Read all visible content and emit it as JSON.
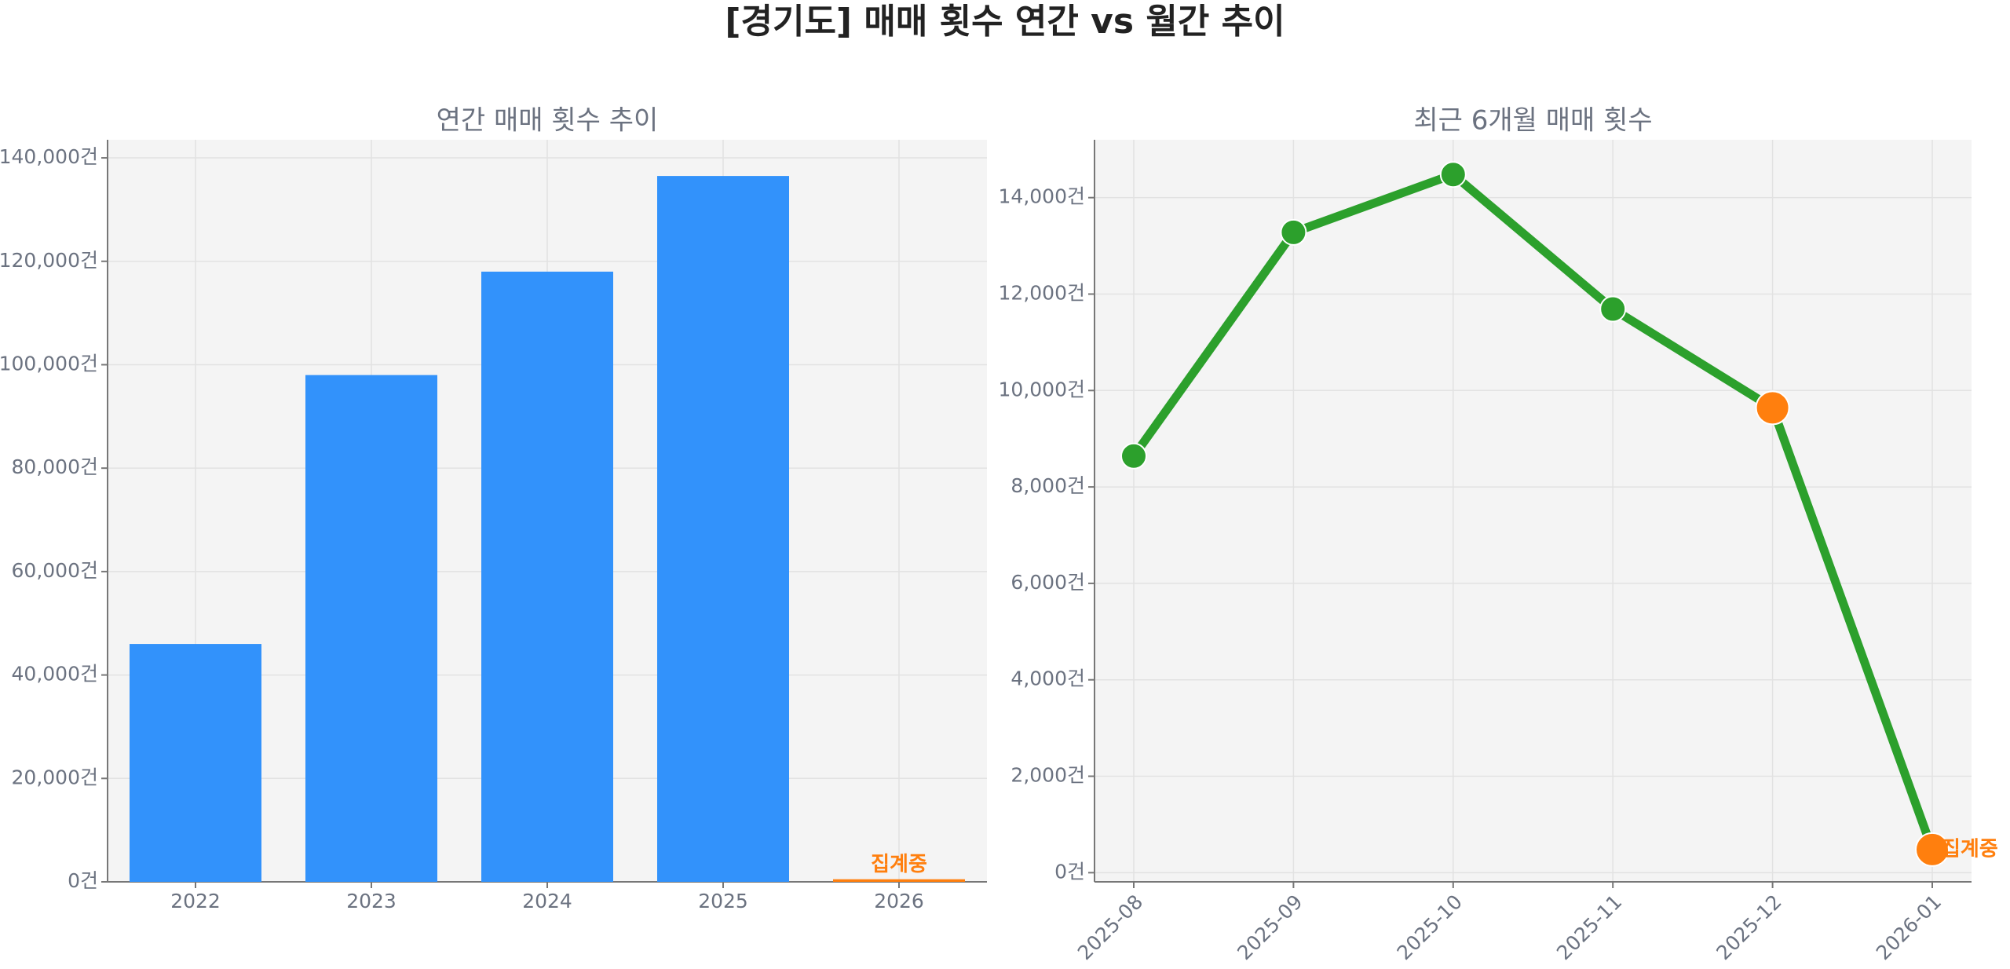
{
  "title": "[경기도] 매매 횟수 연간 vs 월간 추이",
  "chart_data": [
    {
      "type": "bar",
      "title": "연간 매매 횟수 추이",
      "categories": [
        "2022",
        "2023",
        "2024",
        "2025",
        "2026"
      ],
      "values": [
        46000,
        98000,
        118000,
        136500,
        500
      ],
      "colors": [
        "#3292fb",
        "#3292fb",
        "#3292fb",
        "#3292fb",
        "#ff7f0e"
      ],
      "annotation": "집계중",
      "ylim": [
        0,
        143500
      ],
      "yticks": [
        {
          "value": 0,
          "label": "0건"
        },
        {
          "value": 20000,
          "label": "20,000건"
        },
        {
          "value": 40000,
          "label": "40,000건"
        },
        {
          "value": 60000,
          "label": "60,000건"
        },
        {
          "value": 80000,
          "label": "80,000건"
        },
        {
          "value": 100000,
          "label": "100,000건"
        },
        {
          "value": 120000,
          "label": "120,000건"
        },
        {
          "value": 140000,
          "label": "140,000건"
        }
      ],
      "grid": true
    },
    {
      "type": "line",
      "title": "최근 6개월 매매 횟수",
      "categories": [
        "2025-08",
        "2025-09",
        "2025-10",
        "2025-11",
        "2025-12",
        "2026-01"
      ],
      "values": [
        8640,
        13280,
        14480,
        11690,
        9640,
        480
      ],
      "color": "#2ca02c",
      "marker_colors": [
        "#2ca02c",
        "#2ca02c",
        "#2ca02c",
        "#2ca02c",
        "#ff7f0e",
        "#ff7f0e"
      ],
      "annotation": "집계중",
      "ylim": [
        -190,
        15200
      ],
      "yticks": [
        {
          "value": 0,
          "label": "0건"
        },
        {
          "value": 2000,
          "label": "2,000건"
        },
        {
          "value": 4000,
          "label": "4,000건"
        },
        {
          "value": 6000,
          "label": "6,000건"
        },
        {
          "value": 8000,
          "label": "8,000건"
        },
        {
          "value": 10000,
          "label": "10,000건"
        },
        {
          "value": 12000,
          "label": "12,000건"
        },
        {
          "value": 14000,
          "label": "14,000건"
        }
      ],
      "grid": true
    }
  ]
}
